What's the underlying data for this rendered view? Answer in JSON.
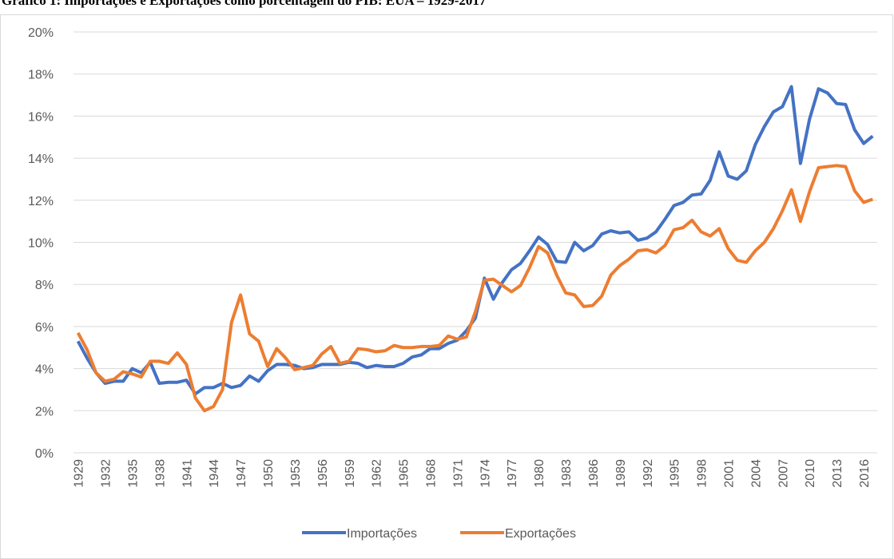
{
  "chart_data": {
    "type": "line",
    "title": "Gráfico 1: Importações e Exportações como porcentagem do PIB: EUA – 1929-2017",
    "categories": [
      "1929",
      null,
      null,
      "1932",
      null,
      null,
      "1935",
      null,
      null,
      "1938",
      null,
      null,
      "1941",
      null,
      null,
      "1944",
      null,
      null,
      "1947",
      null,
      null,
      "1950",
      null,
      null,
      "1953",
      null,
      null,
      "1956",
      null,
      null,
      "1959",
      null,
      null,
      "1962",
      null,
      null,
      "1965",
      null,
      null,
      "1968",
      null,
      null,
      "1971",
      null,
      null,
      "1974",
      null,
      null,
      "1977",
      null,
      null,
      "1980",
      null,
      null,
      "1983",
      null,
      null,
      "1986",
      null,
      null,
      "1989",
      null,
      null,
      "1992",
      null,
      null,
      "1995",
      null,
      null,
      "1998",
      null,
      null,
      "2001",
      null,
      null,
      "2004",
      null,
      null,
      "2007",
      null,
      null,
      "2010",
      null,
      null,
      "2013",
      null,
      null,
      "2016",
      null
    ],
    "series": [
      {
        "name": "Importações",
        "color": "#4472c4",
        "values": [
          5.3,
          4.5,
          3.8,
          3.3,
          3.4,
          3.4,
          4.0,
          3.8,
          4.3,
          3.3,
          3.35,
          3.35,
          3.45,
          2.8,
          3.1,
          3.1,
          3.3,
          3.1,
          3.2,
          3.65,
          3.4,
          3.9,
          4.2,
          4.2,
          4.15,
          4.0,
          4.05,
          4.2,
          4.2,
          4.2,
          4.3,
          4.25,
          4.05,
          4.15,
          4.1,
          4.1,
          4.25,
          4.55,
          4.65,
          4.95,
          4.95,
          5.2,
          5.35,
          5.8,
          6.4,
          8.3,
          7.3,
          8.1,
          8.7,
          9.0,
          9.6,
          10.25,
          9.9,
          9.1,
          9.05,
          10.0,
          9.6,
          9.85,
          10.4,
          10.55,
          10.45,
          10.5,
          10.1,
          10.2,
          10.5,
          11.1,
          11.75,
          11.9,
          12.25,
          12.3,
          12.95,
          14.3,
          13.15,
          13.0,
          13.4,
          14.65,
          15.5,
          16.2,
          16.45,
          17.4,
          13.75,
          15.85,
          17.3,
          17.1,
          16.6,
          16.55,
          15.35,
          14.7,
          15.05
        ]
      },
      {
        "name": "Exportações",
        "color": "#ed7d31",
        "values": [
          5.7,
          4.9,
          3.8,
          3.4,
          3.5,
          3.85,
          3.75,
          3.6,
          4.35,
          4.35,
          4.25,
          4.75,
          4.2,
          2.6,
          2.0,
          2.2,
          3.0,
          6.2,
          7.5,
          5.65,
          5.3,
          4.1,
          4.95,
          4.5,
          3.95,
          4.05,
          4.15,
          4.7,
          5.05,
          4.25,
          4.35,
          4.95,
          4.9,
          4.8,
          4.85,
          5.1,
          5.0,
          5.0,
          5.05,
          5.05,
          5.1,
          5.55,
          5.4,
          5.5,
          6.7,
          8.2,
          8.25,
          7.95,
          7.65,
          7.95,
          8.8,
          9.8,
          9.5,
          8.45,
          7.6,
          7.5,
          6.95,
          7.0,
          7.45,
          8.45,
          8.9,
          9.2,
          9.6,
          9.65,
          9.5,
          9.85,
          10.6,
          10.7,
          11.05,
          10.5,
          10.3,
          10.65,
          9.7,
          9.15,
          9.05,
          9.6,
          10.0,
          10.65,
          11.5,
          12.5,
          11.0,
          12.4,
          13.55,
          13.6,
          13.65,
          13.6,
          12.45,
          11.9,
          12.05
        ]
      }
    ],
    "ylim": [
      0,
      20
    ],
    "yticks": [
      {
        "value": 0,
        "label": "0%"
      },
      {
        "value": 2,
        "label": "2%"
      },
      {
        "value": 4,
        "label": "4%"
      },
      {
        "value": 6,
        "label": "6%"
      },
      {
        "value": 8,
        "label": "8%"
      },
      {
        "value": 10,
        "label": "10%"
      },
      {
        "value": 12,
        "label": "12%"
      },
      {
        "value": 14,
        "label": "14%"
      },
      {
        "value": 16,
        "label": "16%"
      },
      {
        "value": 18,
        "label": "18%"
      },
      {
        "value": 20,
        "label": "20%"
      }
    ],
    "grid": true,
    "legend": "bottom"
  }
}
